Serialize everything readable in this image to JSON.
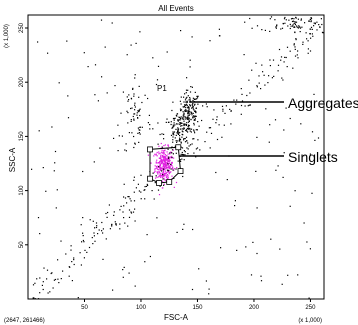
{
  "chart_data": {
    "type": "scatter",
    "title": "All Events",
    "xlabel": "FSC-A",
    "ylabel": "SSC-A",
    "x_scale_note": "(x 1,000)",
    "y_scale_note": "(x 1,000)",
    "cursor_readout": "(2647, 261466)",
    "xlim": [
      0,
      262
    ],
    "ylim": [
      0,
      262
    ],
    "xticks": [
      50,
      100,
      150,
      200,
      250
    ],
    "yticks": [
      50,
      100,
      150,
      200,
      250
    ],
    "grid": false,
    "gate": {
      "name": "P1",
      "vertices": [
        [
          108,
          138
        ],
        [
          133,
          140
        ],
        [
          135,
          118
        ],
        [
          125,
          108
        ],
        [
          116,
          107
        ],
        [
          108,
          111
        ]
      ],
      "color": "#000000"
    },
    "populations": [
      {
        "name": "gated",
        "color": "#e020e0",
        "cluster": {
          "cx": 120,
          "cy": 124,
          "sx": 4,
          "sy": 8,
          "n": 320
        }
      },
      {
        "name": "background",
        "color": "#000000",
        "clusters": [
          {
            "cx": 142,
            "cy": 172,
            "sx": 5,
            "sy": 10,
            "n": 180
          },
          {
            "cx": 132,
            "cy": 152,
            "sx": 6,
            "sy": 10,
            "n": 110
          },
          {
            "cx": 95,
            "cy": 170,
            "sx": 7,
            "sy": 20,
            "n": 70
          },
          {
            "cx": 235,
            "cy": 255,
            "sx": 15,
            "sy": 4,
            "n": 80
          }
        ],
        "diagonal_n": 260,
        "scatter_n": 160
      }
    ],
    "annotations": [
      {
        "text": "Aggregates",
        "from": [
          150,
          180
        ],
        "to_label": "Aggregates"
      },
      {
        "text": "Singlets",
        "from": [
          137,
          130
        ],
        "to_label": "Singlets"
      }
    ]
  }
}
